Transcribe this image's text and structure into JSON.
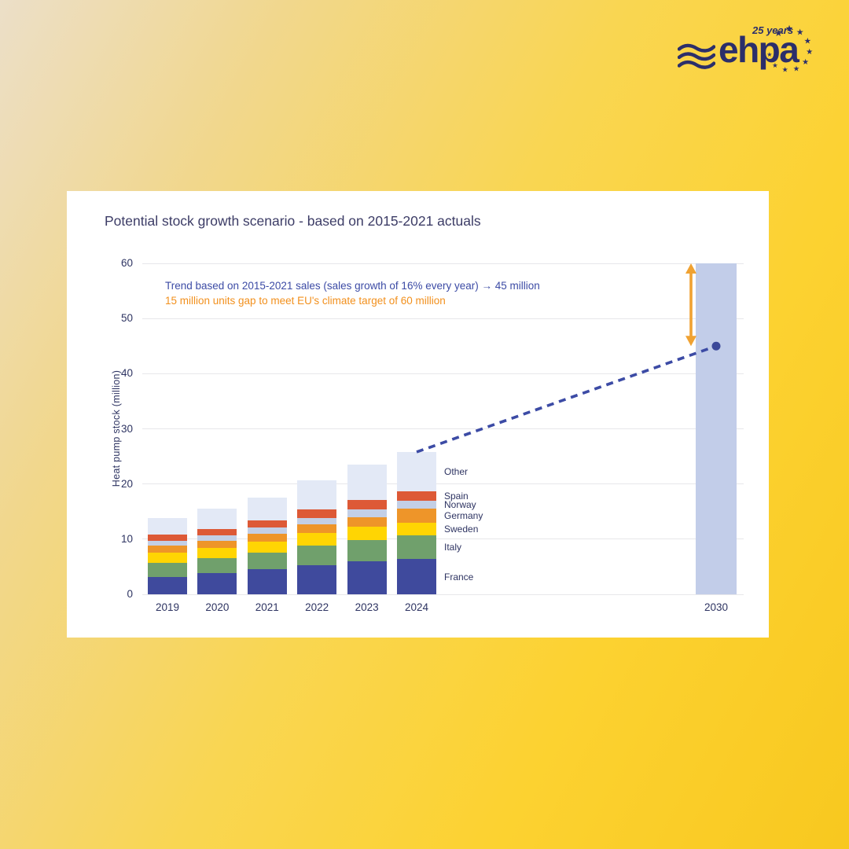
{
  "background": {
    "gradient_left": "#ecdfc8",
    "gradient_right": "#f8c81f"
  },
  "logo": {
    "brand": "ehpa",
    "anniversary": "25 years",
    "color": "#2b2e6a",
    "star_count": 10,
    "waves_icon": "three-wavy-lines"
  },
  "card": {
    "title": "Potential stock growth scenario - based on 2015-2021 actuals"
  },
  "annotations": {
    "trend_line_text": "Trend based on 2015-2021 sales (sales growth of 16% every year) → 45 million",
    "trend_text_color": "#3c4ba5",
    "gap_text": "15 million units gap to meet EU's climate target of 60 million",
    "gap_text_color": "#f2901d"
  },
  "chart_data": {
    "type": "bar",
    "stacked": true,
    "title": "Potential stock growth scenario - based on 2015-2021 actuals",
    "xlabel": "",
    "ylabel": "Heat pump stock (million)",
    "ylim": [
      0,
      60
    ],
    "yticks": [
      0,
      10,
      20,
      30,
      40,
      50,
      60
    ],
    "grid": true,
    "categories": [
      "2019",
      "2020",
      "2021",
      "2022",
      "2023",
      "2024"
    ],
    "series": [
      {
        "name": "France",
        "color": "#3f4a9d",
        "values": [
          3.2,
          3.8,
          4.5,
          5.3,
          6.0,
          6.4
        ]
      },
      {
        "name": "Italy",
        "color": "#70a06c",
        "values": [
          2.5,
          2.7,
          3.0,
          3.6,
          3.9,
          4.3
        ]
      },
      {
        "name": "Sweden",
        "color": "#ffd503",
        "values": [
          1.8,
          1.9,
          2.0,
          2.2,
          2.3,
          2.3
        ]
      },
      {
        "name": "Germany",
        "color": "#ee9529",
        "values": [
          1.3,
          1.3,
          1.5,
          1.6,
          1.8,
          2.5
        ]
      },
      {
        "name": "Norway",
        "color": "#c3cfe6",
        "values": [
          0.9,
          1.0,
          1.1,
          1.2,
          1.4,
          1.4
        ]
      },
      {
        "name": "Spain",
        "color": "#dd5936",
        "values": [
          1.1,
          1.2,
          1.3,
          1.5,
          1.7,
          1.8
        ]
      },
      {
        "name": "Other",
        "color": "#e3e9f6",
        "values": [
          3.0,
          3.6,
          4.2,
          5.3,
          6.4,
          7.1
        ]
      }
    ],
    "totals": [
      13.8,
      15.5,
      17.6,
      20.7,
      23.5,
      25.8
    ],
    "target_bar": {
      "category": "2030",
      "value": 60,
      "color": "#c2cde9"
    },
    "trend": {
      "from_category": "2024",
      "from_value": 25.8,
      "to_category": "2030",
      "to_value": 45,
      "style": "dashed",
      "color": "#3c4ba5",
      "endpoint_dot": true,
      "dot_color": "#3b4899"
    },
    "gap_arrow": {
      "from_value": 45,
      "to_value": 60,
      "color": "#f0a232"
    },
    "series_labels_position": "right-of-2024-bar",
    "legend_labels_top_to_bottom": [
      "Other",
      "Spain",
      "Norway",
      "Germany",
      "Sweden",
      "Italy",
      "France"
    ]
  }
}
